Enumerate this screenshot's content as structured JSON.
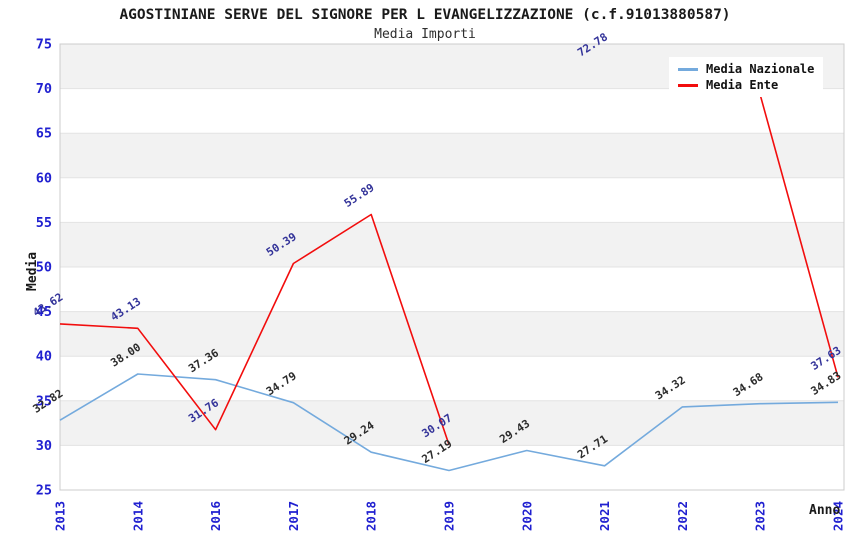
{
  "chart_data": {
    "type": "line",
    "title": "AGOSTINIANE SERVE DEL SIGNORE PER L EVANGELIZZAZIONE (c.f.91013880587)",
    "subtitle": "Media Importi",
    "xlabel": "Anno",
    "ylabel": "Media",
    "categories": [
      "2013",
      "2014",
      "2016",
      "2017",
      "2018",
      "2019",
      "2020",
      "2021",
      "2022",
      "2023",
      "2024"
    ],
    "ylim": [
      25,
      75
    ],
    "yticks": [
      25,
      30,
      35,
      40,
      45,
      50,
      55,
      60,
      65,
      70,
      75
    ],
    "grid": "horizontal gridlines with alternating shaded bands",
    "legend_position": "top-right",
    "legend_items": [
      {
        "label": "Media Nazionale",
        "color": "#74aadd"
      },
      {
        "label": "Media Ente",
        "color": "#f20d0d"
      }
    ],
    "series": [
      {
        "name": "Media Nazionale",
        "color": "#74aadd",
        "label_color": "#2b2b2b",
        "values": [
          32.82,
          38.0,
          37.36,
          34.79,
          29.24,
          27.19,
          29.43,
          27.71,
          34.32,
          34.68,
          34.83
        ],
        "labels": [
          "32.82",
          "38.00",
          "37.36",
          "34.79",
          "29.24",
          "27.19",
          "29.43",
          "27.71",
          "34.32",
          "34.68",
          "34.83"
        ]
      },
      {
        "name": "Media Ente",
        "color": "#f20d0d",
        "label_color": "#333399",
        "values": [
          43.62,
          43.13,
          31.76,
          50.39,
          55.89,
          30.07,
          null,
          72.78,
          null,
          69.3,
          37.63
        ],
        "labels": [
          "43.62",
          "43.13",
          "31.76",
          "50.39",
          "55.89",
          "30.07",
          null,
          "72.78",
          null,
          null,
          "37.63"
        ]
      }
    ],
    "colors": {
      "band": "#f2f2f2",
      "gridline": "#e3e3e3",
      "border": "#cccccc",
      "tick_label": "#2020d0"
    }
  }
}
